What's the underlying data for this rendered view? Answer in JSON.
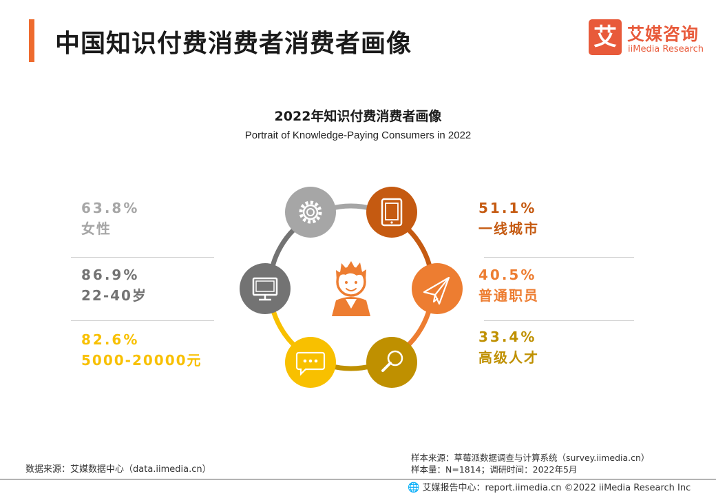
{
  "header": {
    "title": "中国知识付费消费者消费者画像",
    "logo_mark": "艾",
    "logo_cn": "艾媒咨询",
    "logo_en": "iiMedia Research"
  },
  "chart_data": {
    "type": "infographic",
    "title": "2022年知识付费消费者画像",
    "subtitle": "Portrait of Knowledge-Paying Consumers in 2022",
    "stats": [
      {
        "value": "63.8%",
        "label": "女性",
        "color": "#a6a6a6",
        "icon": "gear-icon"
      },
      {
        "value": "86.9%",
        "label": "22-40岁",
        "color": "#737373",
        "icon": "monitor-icon"
      },
      {
        "value": "82.6%",
        "label": "5000-20000元",
        "color": "#f8c000",
        "icon": "chat-bubble-icon"
      },
      {
        "value": "51.1%",
        "label": "一线城市",
        "color": "#c55a11",
        "icon": "tablet-icon"
      },
      {
        "value": "40.5%",
        "label": "普通职员",
        "color": "#ed7d31",
        "icon": "paper-plane-icon"
      },
      {
        "value": "33.4%",
        "label": "高级人才",
        "color": "#bf9000",
        "icon": "magnifier-icon"
      }
    ],
    "center_icon": "person-icon"
  },
  "footer": {
    "source_left": "数据来源：艾媒数据中心（data.iimedia.cn）",
    "sample_source": "样本来源：草莓派数据调查与计算系统（survey.iimedia.cn）",
    "sample_size": "样本量：N=1814；调研时间：2022年5月",
    "footer_text": "艾媒报告中心：report.iimedia.cn  ©2022  iiMedia Research  Inc",
    "globe_icon": "globe-icon"
  }
}
